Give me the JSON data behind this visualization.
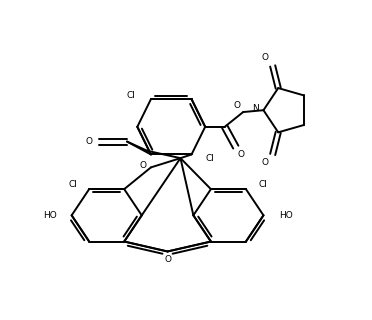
{
  "background": "#ffffff",
  "line_color": "#000000",
  "line_width": 1.4,
  "fig_width": 3.72,
  "fig_height": 3.2,
  "dpi": 100,
  "xlim": [
    0,
    10
  ],
  "ylim": [
    0,
    8.6
  ]
}
